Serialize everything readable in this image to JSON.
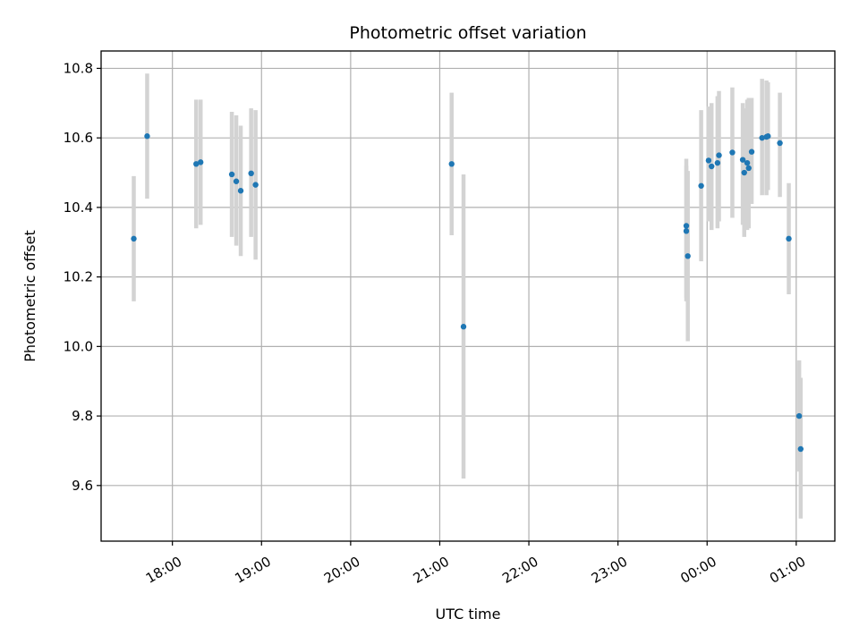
{
  "chart_data": {
    "type": "scatter",
    "title": "Photometric offset variation",
    "xlabel": "UTC time",
    "ylabel": "Photometric offset",
    "x_unit": "UTC time of day (times after midnight belong to the next day)",
    "xlim": [
      "17:12",
      "01:26"
    ],
    "ylim": [
      9.44,
      10.85
    ],
    "x_ticks": [
      "18:00",
      "19:00",
      "20:00",
      "21:00",
      "22:00",
      "23:00",
      "00:00",
      "01:00"
    ],
    "y_ticks": [
      "9.6",
      "9.8",
      "10.0",
      "10.2",
      "10.4",
      "10.6",
      "10.8"
    ],
    "grid": true,
    "colors": {
      "point": "#1f77b4",
      "errorbar": "#d3d3d3",
      "grid": "#b0b0b0"
    },
    "points": [
      {
        "x": "17:34",
        "y": 10.31,
        "lo": 10.13,
        "hi": 10.49
      },
      {
        "x": "17:43",
        "y": 10.605,
        "lo": 10.425,
        "hi": 10.785
      },
      {
        "x": "18:16",
        "y": 10.525,
        "lo": 10.34,
        "hi": 10.71
      },
      {
        "x": "18:19",
        "y": 10.53,
        "lo": 10.35,
        "hi": 10.71
      },
      {
        "x": "18:40",
        "y": 10.495,
        "lo": 10.315,
        "hi": 10.675
      },
      {
        "x": "18:43",
        "y": 10.475,
        "lo": 10.29,
        "hi": 10.665
      },
      {
        "x": "18:46",
        "y": 10.448,
        "lo": 10.26,
        "hi": 10.635
      },
      {
        "x": "18:53",
        "y": 10.498,
        "lo": 10.315,
        "hi": 10.685
      },
      {
        "x": "18:56",
        "y": 10.465,
        "lo": 10.25,
        "hi": 10.68
      },
      {
        "x": "21:08",
        "y": 10.525,
        "lo": 10.32,
        "hi": 10.73
      },
      {
        "x": "21:16",
        "y": 10.057,
        "lo": 9.62,
        "hi": 10.495
      },
      {
        "x": "23:46",
        "y": 10.347,
        "lo": 10.13,
        "hi": 10.54
      },
      {
        "x": "23:46",
        "y": 10.332,
        "lo": 10.14,
        "hi": 10.52
      },
      {
        "x": "23:47",
        "y": 10.26,
        "lo": 10.015,
        "hi": 10.505
      },
      {
        "x": "23:56",
        "y": 10.462,
        "lo": 10.245,
        "hi": 10.68
      },
      {
        "x": "00:01",
        "y": 10.535,
        "lo": 10.36,
        "hi": 10.69
      },
      {
        "x": "00:03",
        "y": 10.518,
        "lo": 10.335,
        "hi": 10.7
      },
      {
        "x": "00:07",
        "y": 10.528,
        "lo": 10.34,
        "hi": 10.72
      },
      {
        "x": "00:08",
        "y": 10.55,
        "lo": 10.36,
        "hi": 10.735
      },
      {
        "x": "00:17",
        "y": 10.558,
        "lo": 10.37,
        "hi": 10.745
      },
      {
        "x": "00:24",
        "y": 10.537,
        "lo": 10.35,
        "hi": 10.7
      },
      {
        "x": "00:25",
        "y": 10.5,
        "lo": 10.315,
        "hi": 10.685
      },
      {
        "x": "00:27",
        "y": 10.528,
        "lo": 10.335,
        "hi": 10.71
      },
      {
        "x": "00:28",
        "y": 10.513,
        "lo": 10.34,
        "hi": 10.715
      },
      {
        "x": "00:30",
        "y": 10.56,
        "lo": 10.41,
        "hi": 10.715
      },
      {
        "x": "00:37",
        "y": 10.6,
        "lo": 10.435,
        "hi": 10.77
      },
      {
        "x": "00:40",
        "y": 10.603,
        "lo": 10.435,
        "hi": 10.765
      },
      {
        "x": "00:41",
        "y": 10.605,
        "lo": 10.45,
        "hi": 10.76
      },
      {
        "x": "00:49",
        "y": 10.585,
        "lo": 10.43,
        "hi": 10.73
      },
      {
        "x": "00:55",
        "y": 10.31,
        "lo": 10.15,
        "hi": 10.47
      },
      {
        "x": "01:02",
        "y": 9.8,
        "lo": 9.64,
        "hi": 9.96
      },
      {
        "x": "01:03",
        "y": 9.705,
        "lo": 9.505,
        "hi": 9.91
      }
    ]
  }
}
